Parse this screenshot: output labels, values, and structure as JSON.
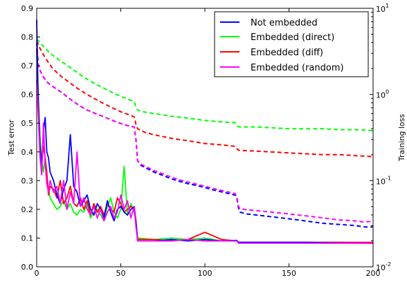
{
  "chart_data": {
    "type": "line",
    "xlim": [
      0,
      200
    ],
    "x_ticks": [
      0,
      50,
      100,
      150,
      200
    ],
    "left_axis": {
      "label": "Test error",
      "ylim": [
        0.0,
        0.9
      ],
      "ticks": [
        0.0,
        0.1,
        0.2,
        0.3,
        0.4,
        0.5,
        0.6,
        0.7,
        0.8,
        0.9
      ],
      "tick_labels": [
        "0.0",
        "0.1",
        "0.2",
        "0.3",
        "0.4",
        "0.5",
        "0.6",
        "0.7",
        "0.8",
        "0.9"
      ]
    },
    "right_axis": {
      "label": "Training loss",
      "scale": "log",
      "ylim": [
        0.01,
        10
      ],
      "ticks": [
        0.01,
        0.1,
        1,
        10
      ],
      "tick_labels": [
        {
          "base": "10",
          "exp": "-2"
        },
        {
          "base": "10",
          "exp": "-1"
        },
        {
          "base": "10",
          "exp": "0"
        },
        {
          "base": "10",
          "exp": "1"
        }
      ]
    },
    "legend": {
      "placement": "top-right"
    },
    "series": [
      {
        "name": "Not embedded",
        "color": "#0000ff",
        "test_error": {
          "x": [
            0,
            1,
            2,
            3,
            4,
            5,
            6,
            7,
            8,
            10,
            12,
            14,
            16,
            18,
            20,
            22,
            24,
            26,
            28,
            30,
            32,
            34,
            36,
            38,
            40,
            42,
            44,
            46,
            48,
            50,
            52,
            54,
            56,
            58,
            59,
            60,
            70,
            80,
            90,
            100,
            110,
            119,
            120,
            140,
            160,
            180,
            200
          ],
          "y": [
            0.86,
            0.55,
            0.42,
            0.35,
            0.47,
            0.52,
            0.4,
            0.38,
            0.33,
            0.3,
            0.25,
            0.22,
            0.27,
            0.3,
            0.46,
            0.28,
            0.26,
            0.21,
            0.23,
            0.25,
            0.2,
            0.18,
            0.22,
            0.2,
            0.17,
            0.23,
            0.19,
            0.16,
            0.2,
            0.21,
            0.19,
            0.18,
            0.2,
            0.21,
            0.16,
            0.09,
            0.09,
            0.095,
            0.09,
            0.095,
            0.09,
            0.092,
            0.085,
            0.085,
            0.085,
            0.083,
            0.082
          ]
        },
        "training_loss": {
          "x": [
            0,
            1,
            2,
            4,
            6,
            8,
            10,
            15,
            20,
            25,
            30,
            35,
            40,
            45,
            50,
            55,
            58,
            59,
            60,
            62,
            65,
            70,
            75,
            80,
            85,
            90,
            95,
            100,
            105,
            110,
            115,
            118,
            119,
            120,
            121,
            125,
            130,
            140,
            150,
            160,
            170,
            180,
            190,
            195,
            200
          ],
          "y": [
            4.0,
            2.2,
            1.9,
            1.6,
            1.4,
            1.3,
            1.22,
            1.05,
            0.88,
            0.75,
            0.66,
            0.6,
            0.55,
            0.5,
            0.46,
            0.43,
            0.42,
            0.3,
            0.17,
            0.15,
            0.14,
            0.125,
            0.115,
            0.105,
            0.098,
            0.092,
            0.088,
            0.083,
            0.078,
            0.074,
            0.07,
            0.068,
            0.062,
            0.048,
            0.043,
            0.041,
            0.04,
            0.038,
            0.036,
            0.034,
            0.032,
            0.031,
            0.03,
            0.029,
            0.029
          ]
        }
      },
      {
        "name": "Embedded (direct)",
        "color": "#00ff00",
        "test_error": {
          "x": [
            0,
            1,
            2,
            3,
            4,
            5,
            6,
            7,
            8,
            10,
            12,
            14,
            16,
            18,
            20,
            22,
            24,
            26,
            28,
            30,
            32,
            34,
            36,
            38,
            40,
            42,
            44,
            46,
            48,
            50,
            52,
            54,
            56,
            58,
            59,
            60,
            70,
            80,
            90,
            100,
            110,
            119,
            120,
            140,
            160,
            180,
            200
          ],
          "y": [
            0.74,
            0.6,
            0.45,
            0.37,
            0.33,
            0.38,
            0.3,
            0.27,
            0.24,
            0.22,
            0.2,
            0.21,
            0.23,
            0.2,
            0.22,
            0.19,
            0.18,
            0.2,
            0.19,
            0.22,
            0.17,
            0.19,
            0.2,
            0.18,
            0.16,
            0.21,
            0.24,
            0.19,
            0.17,
            0.2,
            0.35,
            0.18,
            0.22,
            0.19,
            0.16,
            0.1,
            0.095,
            0.1,
            0.095,
            0.1,
            0.09,
            0.09,
            0.085,
            0.085,
            0.085,
            0.085,
            0.084
          ]
        },
        "training_loss": {
          "x": [
            0,
            1,
            2,
            4,
            6,
            8,
            10,
            15,
            20,
            25,
            30,
            35,
            40,
            45,
            50,
            55,
            58,
            59,
            60,
            62,
            65,
            70,
            80,
            90,
            100,
            110,
            118,
            119,
            120,
            130,
            140,
            150,
            160,
            170,
            180,
            190,
            200
          ],
          "y": [
            4.4,
            4.2,
            4.0,
            3.6,
            3.3,
            3.0,
            2.8,
            2.4,
            2.05,
            1.75,
            1.5,
            1.32,
            1.18,
            1.05,
            0.95,
            0.87,
            0.82,
            0.72,
            0.66,
            0.64,
            0.62,
            0.6,
            0.56,
            0.53,
            0.5,
            0.48,
            0.47,
            0.44,
            0.42,
            0.42,
            0.41,
            0.4,
            0.4,
            0.4,
            0.39,
            0.39,
            0.38
          ]
        }
      },
      {
        "name": "Embedded (diff)",
        "color": "#ff0000",
        "test_error": {
          "x": [
            0,
            1,
            2,
            3,
            4,
            5,
            6,
            7,
            8,
            10,
            12,
            14,
            16,
            18,
            20,
            22,
            24,
            26,
            28,
            30,
            32,
            34,
            36,
            38,
            40,
            42,
            44,
            46,
            48,
            50,
            52,
            54,
            56,
            58,
            59,
            60,
            70,
            80,
            90,
            100,
            110,
            119,
            120,
            140,
            160,
            180,
            200
          ],
          "y": [
            0.76,
            0.58,
            0.4,
            0.36,
            0.42,
            0.38,
            0.33,
            0.25,
            0.28,
            0.27,
            0.24,
            0.3,
            0.22,
            0.24,
            0.28,
            0.22,
            0.21,
            0.24,
            0.2,
            0.23,
            0.18,
            0.22,
            0.19,
            0.21,
            0.18,
            0.22,
            0.2,
            0.19,
            0.24,
            0.22,
            0.19,
            0.2,
            0.21,
            0.2,
            0.15,
            0.095,
            0.095,
            0.09,
            0.095,
            0.12,
            0.095,
            0.09,
            0.085,
            0.085,
            0.085,
            0.085,
            0.085
          ]
        },
        "training_loss": {
          "x": [
            0,
            1,
            2,
            4,
            6,
            8,
            10,
            15,
            20,
            25,
            30,
            35,
            40,
            45,
            50,
            55,
            58,
            59,
            60,
            62,
            65,
            70,
            80,
            90,
            100,
            110,
            118,
            119,
            120,
            130,
            140,
            150,
            160,
            170,
            180,
            190,
            200
          ],
          "y": [
            4.2,
            3.8,
            3.4,
            2.9,
            2.5,
            2.2,
            1.95,
            1.6,
            1.35,
            1.15,
            1.0,
            0.88,
            0.78,
            0.7,
            0.63,
            0.58,
            0.55,
            0.45,
            0.4,
            0.38,
            0.36,
            0.34,
            0.31,
            0.29,
            0.27,
            0.26,
            0.25,
            0.235,
            0.225,
            0.22,
            0.215,
            0.21,
            0.205,
            0.2,
            0.2,
            0.195,
            0.19
          ]
        }
      },
      {
        "name": "Embedded (random)",
        "color": "#ff00ff",
        "test_error": {
          "x": [
            0,
            1,
            2,
            3,
            4,
            5,
            6,
            7,
            8,
            10,
            12,
            14,
            16,
            18,
            20,
            22,
            24,
            26,
            28,
            30,
            32,
            34,
            36,
            38,
            40,
            42,
            44,
            46,
            48,
            50,
            52,
            54,
            56,
            58,
            59,
            60,
            70,
            80,
            90,
            100,
            110,
            119,
            120,
            140,
            160,
            180,
            200
          ],
          "y": [
            0.65,
            0.52,
            0.38,
            0.32,
            0.5,
            0.36,
            0.29,
            0.26,
            0.3,
            0.26,
            0.28,
            0.22,
            0.3,
            0.2,
            0.26,
            0.22,
            0.4,
            0.21,
            0.24,
            0.2,
            0.18,
            0.21,
            0.17,
            0.2,
            0.16,
            0.19,
            0.21,
            0.17,
            0.19,
            0.25,
            0.2,
            0.23,
            0.17,
            0.21,
            0.14,
            0.09,
            0.09,
            0.09,
            0.095,
            0.09,
            0.09,
            0.09,
            0.082,
            0.082,
            0.082,
            0.082,
            0.082
          ]
        },
        "training_loss": {
          "x": [
            0,
            1,
            2,
            4,
            6,
            8,
            10,
            15,
            20,
            25,
            30,
            35,
            40,
            45,
            50,
            55,
            58,
            59,
            60,
            62,
            65,
            70,
            75,
            80,
            85,
            90,
            95,
            100,
            105,
            110,
            115,
            118,
            119,
            120,
            121,
            125,
            130,
            140,
            150,
            160,
            170,
            180,
            190,
            195,
            200
          ],
          "y": [
            4.0,
            2.2,
            1.9,
            1.6,
            1.4,
            1.3,
            1.22,
            1.05,
            0.88,
            0.75,
            0.66,
            0.6,
            0.55,
            0.5,
            0.46,
            0.43,
            0.42,
            0.3,
            0.17,
            0.155,
            0.145,
            0.13,
            0.12,
            0.11,
            0.102,
            0.096,
            0.091,
            0.086,
            0.081,
            0.077,
            0.073,
            0.071,
            0.065,
            0.05,
            0.047,
            0.046,
            0.045,
            0.043,
            0.041,
            0.039,
            0.037,
            0.035,
            0.034,
            0.033,
            0.034
          ]
        }
      }
    ]
  }
}
